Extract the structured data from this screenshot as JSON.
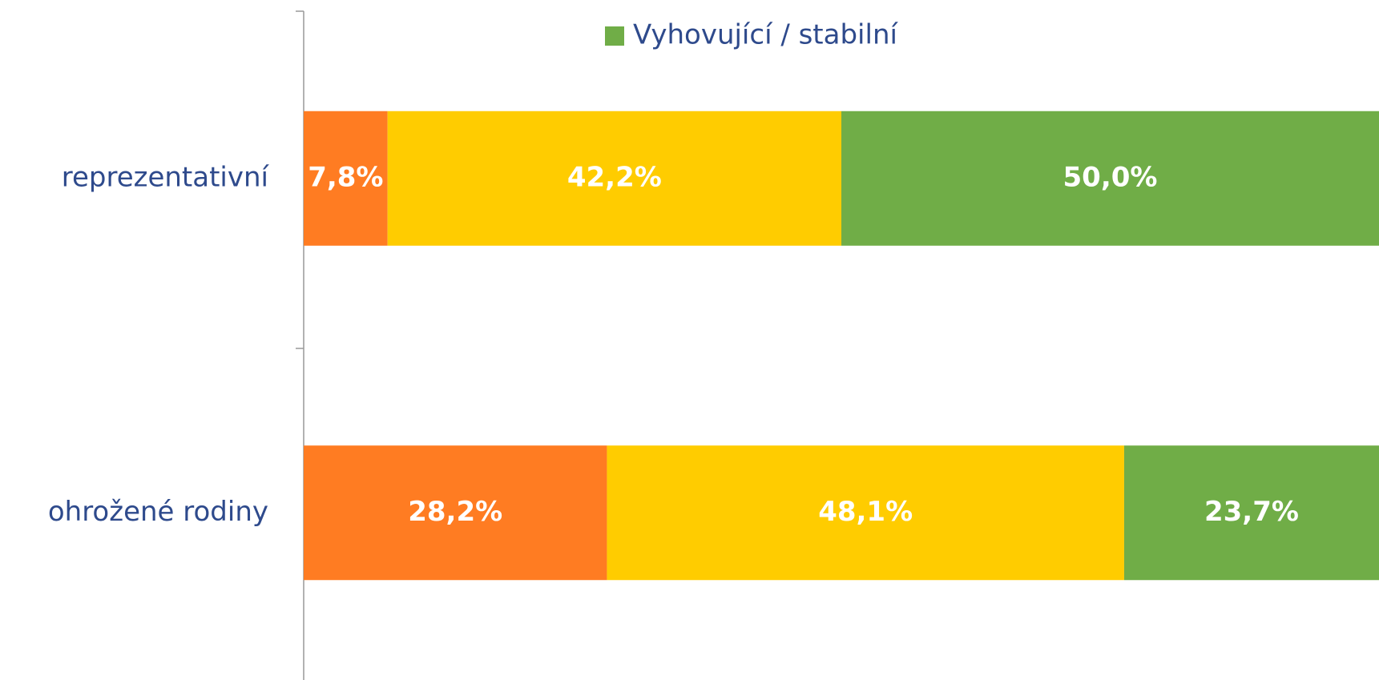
{
  "chart_data": {
    "type": "stacked-bar-horizontal",
    "categories": [
      "reprezentativní",
      "ohrožené rodiny"
    ],
    "xlim": [
      0,
      100
    ],
    "series": [
      {
        "color": "#FF7C22",
        "values": [
          7.8,
          28.2
        ],
        "value_labels": [
          "7,8%",
          "28,2%"
        ]
      },
      {
        "color": "#FFCC00",
        "values": [
          42.2,
          48.1
        ],
        "value_labels": [
          "42,2%",
          "48,1%"
        ]
      },
      {
        "name": "Vyhovující / stabilní",
        "color": "#70AD47",
        "values": [
          50.0,
          23.7
        ],
        "value_labels": [
          "50,0%",
          "23,7%"
        ]
      }
    ]
  }
}
